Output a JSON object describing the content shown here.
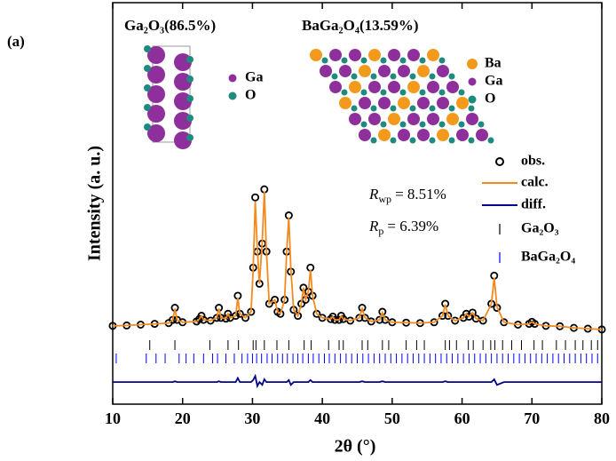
{
  "chart_data": {
    "type": "line",
    "panel_label": "(a)",
    "xlabel": "2θ (°)",
    "ylabel": "Intensity (a. u.)",
    "xlim": [
      10,
      80
    ],
    "xticks": [
      10,
      20,
      30,
      40,
      50,
      60,
      70,
      80
    ],
    "ylim": [
      0,
      100
    ],
    "x": [
      10,
      12,
      14,
      16,
      18,
      18.6,
      18.9,
      19.2,
      20,
      22,
      22.4,
      22.7,
      23,
      24,
      24.9,
      25.2,
      25.5,
      26.2,
      26.5,
      26.8,
      27.6,
      27.9,
      28.2,
      29,
      29.8,
      30.1,
      30.4,
      30.7,
      31.0,
      31.4,
      31.7,
      32.0,
      32.4,
      33.2,
      33.6,
      34,
      34.6,
      34.9,
      35.2,
      35.5,
      35.9,
      36.5,
      37.0,
      37.3,
      37.6,
      38.0,
      38.3,
      38.6,
      39.2,
      40,
      41.2,
      41.5,
      41.8,
      42.4,
      42.7,
      43.0,
      44,
      45.3,
      45.7,
      46.1,
      47,
      48.2,
      48.6,
      49.0,
      50,
      52,
      54,
      56,
      57.2,
      57.6,
      58,
      59,
      60.2,
      60.6,
      61.0,
      61.5,
      62,
      63,
      64.2,
      64.6,
      65.0,
      66,
      68,
      69.6,
      70,
      70.4,
      72,
      74,
      76,
      78,
      80
    ],
    "series": [
      {
        "name": "obs.",
        "color": "#000000",
        "marker": "circle",
        "values": [
          19.5,
          19.6,
          19.8,
          20,
          20.2,
          21,
          24,
          21,
          20.4,
          20.6,
          21.2,
          22,
          21,
          20.8,
          21.5,
          24,
          21.5,
          21.3,
          22.5,
          21.5,
          22,
          27,
          22.5,
          21.5,
          23,
          34,
          51.5,
          38,
          30,
          40,
          53.5,
          38,
          25,
          26,
          23,
          22.5,
          26,
          38,
          47,
          33,
          23.5,
          22,
          25,
          29,
          26,
          28,
          34,
          27,
          22.5,
          21.5,
          21.2,
          21.8,
          21,
          21,
          22,
          21.2,
          20.8,
          21.5,
          24,
          21.5,
          20.6,
          21,
          23,
          21,
          20.4,
          20.3,
          20.2,
          20.4,
          22,
          25,
          22,
          20.8,
          21.5,
          22.5,
          21.8,
          22.8,
          21.3,
          20.8,
          25,
          32,
          24,
          20.4,
          19.8,
          20,
          20.5,
          20,
          19.5,
          19.4,
          19,
          18.8,
          18.6
        ]
      },
      {
        "name": "calc.",
        "color": "#f28a1e",
        "values": [
          19.5,
          19.6,
          19.8,
          20,
          20.2,
          21,
          23.8,
          21,
          20.4,
          20.6,
          21.2,
          22,
          21,
          20.8,
          21.5,
          23.8,
          21.5,
          21.3,
          22.5,
          21.5,
          22,
          26.5,
          22.5,
          21.5,
          23,
          33.5,
          50.5,
          38.5,
          30,
          40.5,
          53,
          38,
          25,
          26,
          23,
          22.5,
          26,
          38,
          46.5,
          33.5,
          23.5,
          22,
          25,
          29,
          26,
          28,
          33.5,
          27,
          22.5,
          21.5,
          21.2,
          21.8,
          21,
          21,
          22,
          21.2,
          20.8,
          21.5,
          23.8,
          21.5,
          20.6,
          21,
          22.8,
          21,
          20.4,
          20.3,
          20.2,
          20.4,
          22,
          24.8,
          22,
          20.8,
          21.5,
          22.5,
          21.8,
          22.8,
          21.3,
          20.8,
          25,
          31.5,
          24.2,
          20.4,
          19.8,
          20,
          20.5,
          20,
          19.5,
          19.4,
          19,
          18.8,
          18.6
        ]
      },
      {
        "name": "diff.",
        "color": "#00008b",
        "values": [
          5.5,
          5.5,
          5.5,
          5.5,
          5.5,
          5.5,
          5.7,
          5.5,
          5.5,
          5.5,
          5.5,
          5.5,
          5.5,
          5.5,
          5.5,
          5.7,
          5.5,
          5.5,
          5.5,
          5.5,
          5.5,
          6.5,
          5.5,
          5.5,
          5.5,
          6,
          7,
          4.5,
          5.5,
          4.8,
          6.2,
          5.5,
          5.5,
          5.5,
          5.5,
          5.5,
          5.5,
          5.5,
          6,
          4.8,
          5.5,
          5.5,
          5.5,
          5.5,
          5.5,
          5.5,
          6,
          5.5,
          5.5,
          5.5,
          5.5,
          5.5,
          5.5,
          5.5,
          5.5,
          5.5,
          5.5,
          5.5,
          5.7,
          5.5,
          5.5,
          5.5,
          5.7,
          5.5,
          5.5,
          5.5,
          5.5,
          5.5,
          5.5,
          5.7,
          5.5,
          5.5,
          5.5,
          5.5,
          5.5,
          5.5,
          5.5,
          5.5,
          5.5,
          6.2,
          4.8,
          5.5,
          5.5,
          5.5,
          5.5,
          5.5,
          5.5,
          5.5,
          5.5,
          5.5,
          5.5
        ]
      }
    ],
    "reflections": [
      {
        "name": "Ga₂O₃",
        "color": "#000000",
        "positions": [
          15.3,
          18.9,
          23.9,
          26.5,
          28.0,
          30.1,
          30.5,
          31.7,
          33.5,
          35.2,
          37.4,
          38.4,
          40.9,
          42.4,
          43.0,
          45.7,
          46.5,
          48.6,
          49.5,
          52,
          53.5,
          54.6,
          57.6,
          58.2,
          59.2,
          60.9,
          61.6,
          63.0,
          64.1,
          64.7,
          65.8,
          67.1,
          68.5,
          70.3,
          71.5,
          73.5,
          74.8,
          76.2,
          77.3,
          78.5,
          79.4
        ]
      },
      {
        "name": "BaGa₂O₄",
        "color": "#0000ff",
        "positions": [
          10.5,
          14.8,
          16.2,
          17.5,
          19.5,
          20.5,
          21.6,
          23,
          24.3,
          25.0,
          26.2,
          27.4,
          28.5,
          29.3,
          30.0,
          30.6,
          31.3,
          32.1,
          32.8,
          33.6,
          34.3,
          35.0,
          35.8,
          36.5,
          37.2,
          38.0,
          38.7,
          39.5,
          40.3,
          41.0,
          41.8,
          42.6,
          43.4,
          44.2,
          45.0,
          45.8,
          46.6,
          47.4,
          48.2,
          49.0,
          49.8,
          50.6,
          51.4,
          52.2,
          53.0,
          53.8,
          54.6,
          55.4,
          56.2,
          57.0,
          57.8,
          58.6,
          59.4,
          60.2,
          61.0,
          61.8,
          62.6,
          63.4,
          64.2,
          65.0,
          65.8,
          66.6,
          67.4,
          68.2,
          69.0,
          69.8,
          70.6,
          71.4,
          72.2,
          73.0,
          73.8,
          74.6,
          75.4,
          76.2,
          77.0,
          77.8,
          78.6,
          79.4
        ]
      }
    ],
    "annotations": [
      {
        "symbol": "R",
        "subscript": "wp",
        "text": "= 8.51%"
      },
      {
        "symbol": "R",
        "subscript": "p",
        "text": "= 6.39%"
      }
    ],
    "insets": [
      {
        "title": "Ga₂O₃(86.5%)",
        "legend": [
          {
            "label": "Ga",
            "color": "#8e2f9c"
          },
          {
            "label": "O",
            "color": "#1f8a80"
          }
        ]
      },
      {
        "title": "BaGa₂O₄(13.59%)",
        "legend": [
          {
            "label": "Ba",
            "color": "#f39a1c"
          },
          {
            "label": "Ga",
            "color": "#8e2f9c"
          },
          {
            "label": "O",
            "color": "#1f8a80"
          }
        ]
      }
    ]
  }
}
